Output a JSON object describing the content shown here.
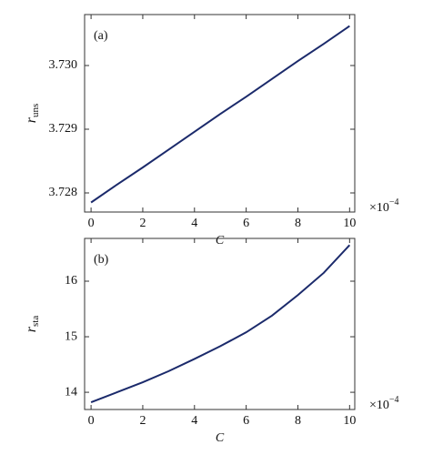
{
  "chart_data": [
    {
      "type": "line",
      "panel_label": "(a)",
      "xlabel": "C",
      "ylabel": "r",
      "ylabel_sub": "uns",
      "x_multiplier": "×10",
      "x_multiplier_exp": "−4",
      "x": [
        0,
        1,
        2,
        3,
        4,
        5,
        6,
        7,
        8,
        9,
        10
      ],
      "series": [
        {
          "color": "#1b2a6b",
          "values": [
            3.72785,
            3.72813,
            3.7284,
            3.72868,
            3.72896,
            3.72924,
            3.72951,
            3.72979,
            3.73007,
            3.73034,
            3.73062
          ]
        }
      ],
      "xlim": [
        -0.25,
        10.2
      ],
      "xticks": [
        0,
        2,
        4,
        6,
        8,
        10
      ],
      "ylim": [
        3.7277,
        3.7308
      ],
      "yticks": [
        3.728,
        3.729,
        {
          "value": 3.73,
          "label": "3.730"
        }
      ]
    },
    {
      "type": "line",
      "panel_label": "(b)",
      "xlabel": "C",
      "ylabel": "r",
      "ylabel_sub": "sta",
      "x_multiplier": "×10",
      "x_multiplier_exp": "−4",
      "x": [
        0,
        1,
        2,
        3,
        4,
        5,
        6,
        7,
        8,
        9,
        10
      ],
      "series": [
        {
          "color": "#1b2a6b",
          "values": [
            13.82,
            14.0,
            14.18,
            14.38,
            14.6,
            14.83,
            15.08,
            15.38,
            15.75,
            16.15,
            16.65
          ]
        }
      ],
      "xlim": [
        -0.25,
        10.2
      ],
      "xticks": [
        0,
        2,
        4,
        6,
        8,
        10
      ],
      "ylim": [
        13.69,
        16.77
      ],
      "yticks": [
        14,
        15,
        16
      ]
    }
  ]
}
